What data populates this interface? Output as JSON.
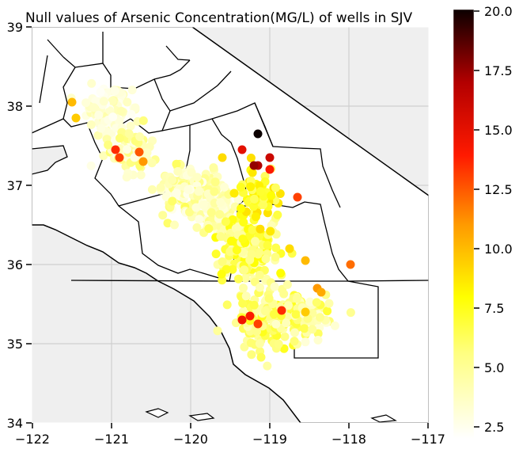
{
  "chart_data": {
    "type": "scatter",
    "title": "Null values of Arsenic Concentration(MG/L) of wells in SJV",
    "xlabel": "",
    "ylabel": "",
    "xlim": [
      -122,
      -117
    ],
    "ylim": [
      34,
      39
    ],
    "x_ticks": [
      "−122",
      "−121",
      "−120",
      "−119",
      "−118",
      "−117"
    ],
    "y_ticks": [
      "34",
      "35",
      "36",
      "37",
      "38",
      "39"
    ],
    "grid": true,
    "colormap": "hot_r",
    "colorbar": {
      "min": 2.0,
      "max": 20.0,
      "ticks": [
        "2.5",
        "5.0",
        "7.5",
        "10.0",
        "12.5",
        "15.0",
        "17.5",
        "20.0"
      ]
    },
    "clusters": [
      {
        "lon": -121.05,
        "lat": 37.95,
        "sx": 0.22,
        "sy": 0.22,
        "n": 150,
        "vmin": 2.2,
        "vmax": 4.5
      },
      {
        "lon": -120.75,
        "lat": 37.45,
        "sx": 0.25,
        "sy": 0.22,
        "n": 80,
        "vmin": 2.5,
        "vmax": 6.0
      },
      {
        "lon": -120.1,
        "lat": 36.95,
        "sx": 0.3,
        "sy": 0.25,
        "n": 120,
        "vmin": 2.5,
        "vmax": 6.5
      },
      {
        "lon": -119.75,
        "lat": 36.75,
        "sx": 0.25,
        "sy": 0.25,
        "n": 140,
        "vmin": 2.5,
        "vmax": 5.5
      },
      {
        "lon": -119.3,
        "lat": 36.2,
        "sx": 0.35,
        "sy": 0.35,
        "n": 170,
        "vmin": 4.0,
        "vmax": 8.0
      },
      {
        "lon": -119.0,
        "lat": 35.3,
        "sx": 0.35,
        "sy": 0.3,
        "n": 170,
        "vmin": 4.0,
        "vmax": 7.5
      },
      {
        "lon": -118.5,
        "lat": 35.35,
        "sx": 0.35,
        "sy": 0.25,
        "n": 60,
        "vmin": 3.0,
        "vmax": 7.0
      },
      {
        "lon": -119.15,
        "lat": 36.85,
        "sx": 0.25,
        "sy": 0.3,
        "n": 60,
        "vmin": 6.0,
        "vmax": 9.0
      }
    ],
    "highlights": [
      {
        "lon": -121.5,
        "lat": 38.05,
        "value": 10
      },
      {
        "lon": -121.45,
        "lat": 37.85,
        "value": 9.5
      },
      {
        "lon": -120.95,
        "lat": 37.45,
        "value": 13.5
      },
      {
        "lon": -120.9,
        "lat": 37.35,
        "value": 13
      },
      {
        "lon": -120.65,
        "lat": 37.42,
        "value": 12.5
      },
      {
        "lon": -120.6,
        "lat": 37.3,
        "value": 11
      },
      {
        "lon": -119.15,
        "lat": 37.65,
        "value": 20
      },
      {
        "lon": -119.35,
        "lat": 37.45,
        "value": 15
      },
      {
        "lon": -119.15,
        "lat": 37.25,
        "value": 17
      },
      {
        "lon": -119.2,
        "lat": 37.25,
        "value": 17.5
      },
      {
        "lon": -119.0,
        "lat": 37.35,
        "value": 16
      },
      {
        "lon": -119.0,
        "lat": 37.2,
        "value": 14
      },
      {
        "lon": -118.65,
        "lat": 36.85,
        "value": 13
      },
      {
        "lon": -117.98,
        "lat": 36.0,
        "value": 12
      },
      {
        "lon": -118.4,
        "lat": 35.7,
        "value": 11
      },
      {
        "lon": -118.35,
        "lat": 35.65,
        "value": 10.5
      },
      {
        "lon": -119.35,
        "lat": 35.3,
        "value": 14.5
      },
      {
        "lon": -119.25,
        "lat": 35.35,
        "value": 14
      },
      {
        "lon": -119.15,
        "lat": 35.25,
        "value": 13
      },
      {
        "lon": -118.85,
        "lat": 35.42,
        "value": 13.5
      },
      {
        "lon": -118.55,
        "lat": 35.4,
        "value": 9.5
      },
      {
        "lon": -119.6,
        "lat": 37.35,
        "value": 9
      },
      {
        "lon": -119.45,
        "lat": 36.9,
        "value": 8.5
      },
      {
        "lon": -118.75,
        "lat": 36.2,
        "value": 9
      },
      {
        "lon": -118.55,
        "lat": 36.05,
        "value": 10
      }
    ]
  }
}
